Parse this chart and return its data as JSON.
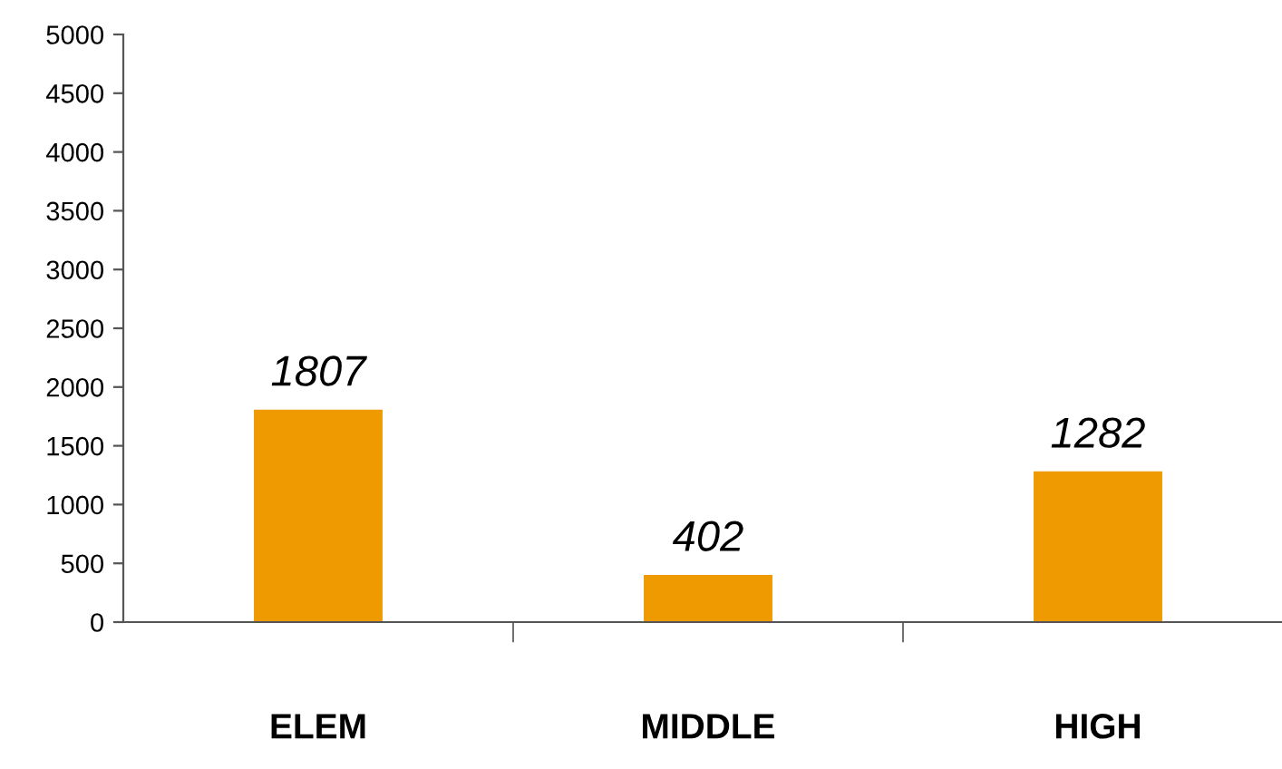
{
  "chart_data": {
    "type": "bar",
    "categories": [
      "ELEM",
      "MIDDLE",
      "HIGH"
    ],
    "values": [
      1807,
      402,
      1282
    ],
    "color": "#ee9a00",
    "ylim": [
      0,
      5000
    ],
    "yticks": [
      0,
      500,
      1000,
      1500,
      2000,
      2500,
      3000,
      3500,
      4000,
      4500,
      5000
    ],
    "grid": false,
    "legend": false,
    "data_labels": true
  }
}
